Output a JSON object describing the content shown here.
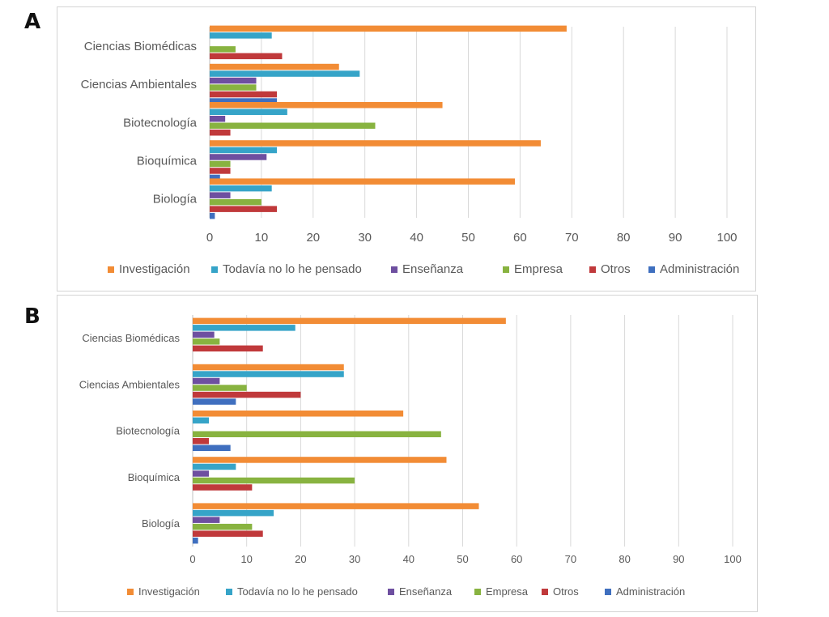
{
  "panels": [
    {
      "letter": "A"
    },
    {
      "letter": "B"
    }
  ],
  "chart_data": [
    {
      "type": "bar",
      "orientation": "horizontal",
      "categories": [
        "Ciencias Biomédicas",
        "Ciencias Ambientales",
        "Biotecnología",
        "Bioquímica",
        "Biología"
      ],
      "series": [
        {
          "name": "Investigación",
          "color": "#f28c35",
          "values": [
            69,
            25,
            45,
            64,
            59
          ]
        },
        {
          "name": "Todavía no lo he pensado",
          "color": "#36a4c8",
          "values": [
            12,
            29,
            15,
            13,
            12
          ]
        },
        {
          "name": "Enseñanza",
          "color": "#6e4fa0",
          "values": [
            0,
            9,
            3,
            11,
            4
          ]
        },
        {
          "name": "Empresa",
          "color": "#88b340",
          "values": [
            5,
            9,
            32,
            4,
            10
          ]
        },
        {
          "name": "Otros",
          "color": "#c0393b",
          "values": [
            14,
            13,
            4,
            4,
            13
          ]
        },
        {
          "name": "Administración",
          "color": "#3f6fbf",
          "values": [
            0,
            13,
            0,
            2,
            1
          ]
        }
      ],
      "xticks": [
        "0",
        "10",
        "20",
        "30",
        "40",
        "50",
        "60",
        "70",
        "80",
        "90",
        "100"
      ],
      "xlim": [
        0,
        100
      ],
      "grid": true,
      "legend_position": "bottom"
    },
    {
      "type": "bar",
      "orientation": "horizontal",
      "categories": [
        "Ciencias Biomédicas",
        "Ciencias Ambientales",
        "Biotecnología",
        "Bioquímica",
        "Biología"
      ],
      "series": [
        {
          "name": "Investigación",
          "color": "#f28c35",
          "values": [
            58,
            28,
            39,
            47,
            53
          ]
        },
        {
          "name": "Todavía no lo he pensado",
          "color": "#36a4c8",
          "values": [
            19,
            28,
            3,
            8,
            15
          ]
        },
        {
          "name": "Enseñanza",
          "color": "#6e4fa0",
          "values": [
            4,
            5,
            0,
            3,
            5
          ]
        },
        {
          "name": "Empresa",
          "color": "#88b340",
          "values": [
            5,
            10,
            46,
            30,
            11
          ]
        },
        {
          "name": "Otros",
          "color": "#c0393b",
          "values": [
            13,
            20,
            3,
            11,
            13
          ]
        },
        {
          "name": "Administración",
          "color": "#3f6fbf",
          "values": [
            0,
            8,
            7,
            0,
            1
          ]
        }
      ],
      "xticks": [
        "0",
        "10",
        "20",
        "30",
        "40",
        "50",
        "60",
        "70",
        "80",
        "90",
        "100"
      ],
      "xlim": [
        0,
        100
      ],
      "grid": true,
      "legend_position": "bottom"
    }
  ]
}
